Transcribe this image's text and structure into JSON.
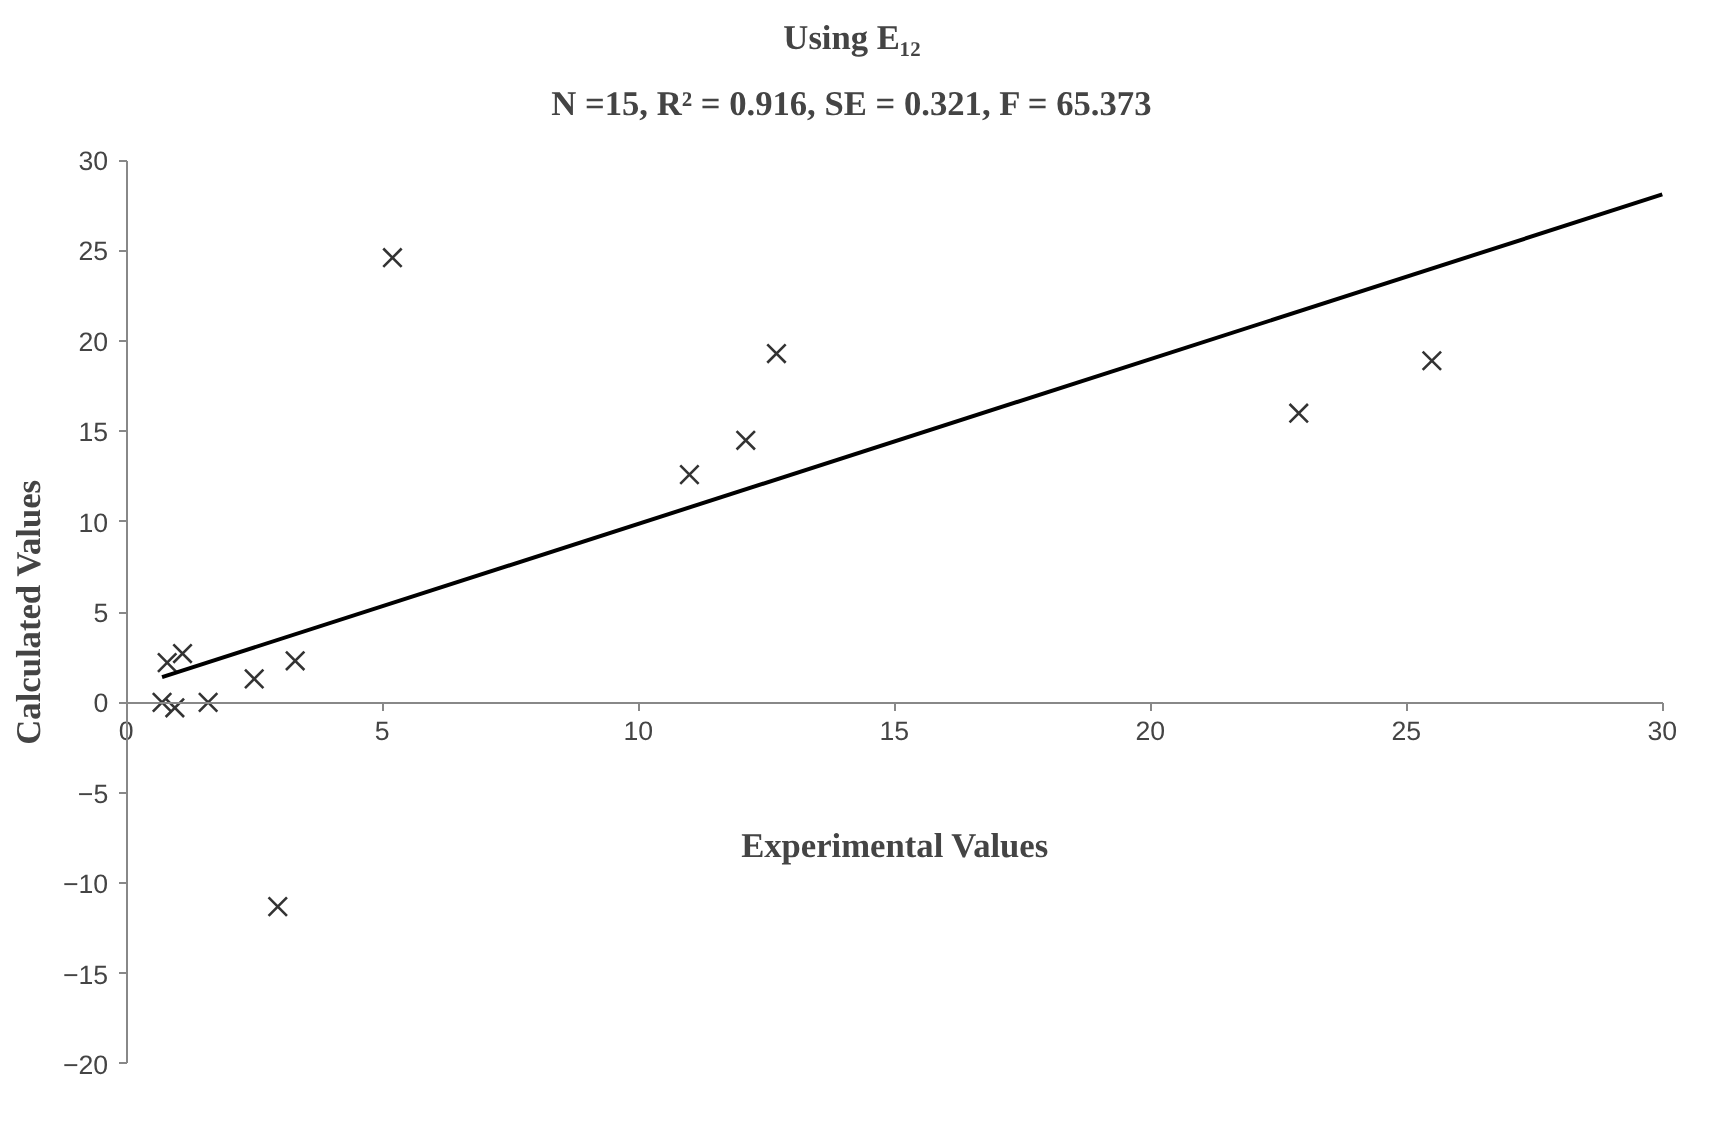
{
  "chart_data": {
    "type": "scatter",
    "title": "Using E₁₂",
    "subtitle": "N =15, R² = 0.916, SE = 0.321, F = 65.373",
    "xlabel": "Experimental Values",
    "ylabel": "Calculated Values",
    "xlim": [
      0,
      30
    ],
    "xticks": [
      0,
      5,
      10,
      15,
      20,
      25,
      30
    ],
    "ylim": [
      -20,
      30
    ],
    "yticks": [
      -20,
      -15,
      -10,
      -5,
      0,
      5,
      10,
      15,
      20,
      25,
      30
    ],
    "grid": false,
    "series": [
      {
        "marker": "cross",
        "color": "#333333",
        "x": [
          5.2,
          12.7,
          11.0,
          12.1,
          22.9,
          25.5,
          3.3,
          2.5,
          1.1,
          0.8,
          0.7,
          0.95,
          1.6,
          2.96
        ],
        "values": [
          24.6,
          19.3,
          12.6,
          14.5,
          16.0,
          18.9,
          2.3,
          1.3,
          2.7,
          2.2,
          0.0,
          -0.3,
          0.0,
          -11.3
        ]
      },
      {
        "type": "line",
        "color": "#000000",
        "line_style": "solid",
        "x": [
          0.7,
          30
        ],
        "values": [
          1.4,
          28.1
        ]
      }
    ]
  }
}
